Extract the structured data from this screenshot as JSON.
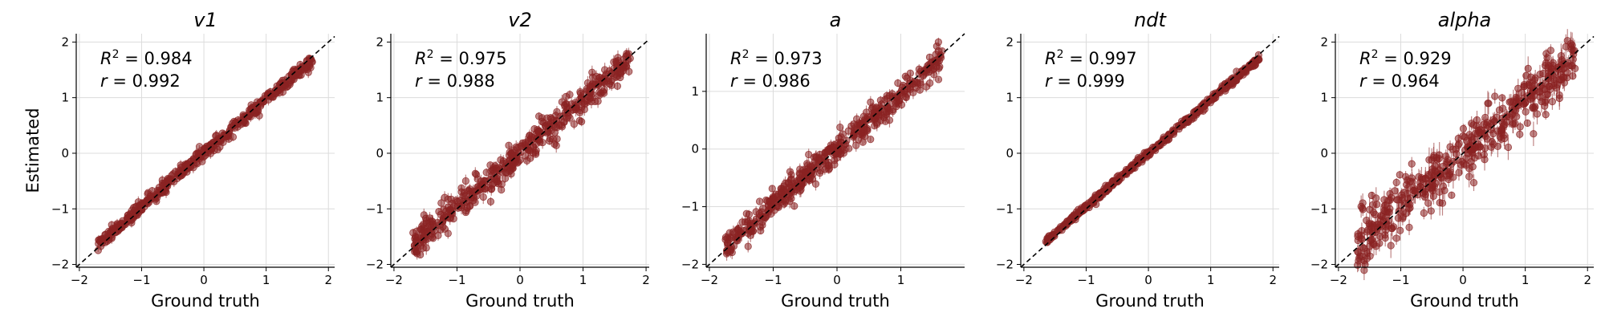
{
  "chart_data": [
    {
      "type": "scatter",
      "title": "v1",
      "xlabel": "Ground truth",
      "ylabel": "Estimated",
      "xlim": [
        -2.05,
        2.1
      ],
      "ylim": [
        -2.05,
        2.15
      ],
      "xticks": [
        -2,
        -1,
        0,
        1,
        2
      ],
      "yticks": [
        -2,
        -1,
        0,
        1,
        2
      ],
      "grid": true,
      "identity_line": true,
      "r2_value": "0.984",
      "r_value": "0.992",
      "point_color": "#8B2323",
      "x_range": [
        -1.7,
        1.75
      ],
      "spread": 0.06,
      "errorbar": 0.08,
      "seed": 11
    },
    {
      "type": "scatter",
      "title": "v2",
      "xlabel": "Ground truth",
      "ylabel": "",
      "xlim": [
        -2.05,
        2.05
      ],
      "ylim": [
        -2.05,
        2.15
      ],
      "xticks": [
        -2,
        -1,
        0,
        1,
        2
      ],
      "yticks": [
        -2,
        -1,
        0,
        1,
        2
      ],
      "grid": true,
      "identity_line": true,
      "r2_value": "0.975",
      "r_value": "0.988",
      "point_color": "#8B2323",
      "x_range": [
        -1.7,
        1.75
      ],
      "spread": 0.13,
      "errorbar": 0.1,
      "seed": 23
    },
    {
      "type": "scatter",
      "title": "a",
      "xlabel": "Ground truth",
      "ylabel": "",
      "xlim": [
        -2.05,
        2.0
      ],
      "ylim": [
        -2.05,
        2.0
      ],
      "xticks": [
        -2,
        -1,
        0,
        1
      ],
      "yticks": [
        -2,
        -1,
        0,
        1
      ],
      "grid": true,
      "identity_line": true,
      "r2_value": "0.973",
      "r_value": "0.986",
      "point_color": "#8B2323",
      "x_range": [
        -1.75,
        1.65
      ],
      "spread": 0.12,
      "errorbar": 0.1,
      "seed": 37
    },
    {
      "type": "scatter",
      "title": "ndt",
      "xlabel": "Ground truth",
      "ylabel": "",
      "xlim": [
        -2.05,
        2.1
      ],
      "ylim": [
        -2.05,
        2.15
      ],
      "xticks": [
        -2,
        -1,
        0,
        1,
        2
      ],
      "yticks": [
        -2,
        -1,
        0,
        1,
        2
      ],
      "grid": true,
      "identity_line": true,
      "r2_value": "0.997",
      "r_value": "0.999",
      "point_color": "#8B2323",
      "x_range": [
        -1.65,
        1.8
      ],
      "spread": 0.03,
      "errorbar": 0.05,
      "seed": 41
    },
    {
      "type": "scatter",
      "title": "alpha",
      "xlabel": "Ground truth",
      "ylabel": "",
      "xlim": [
        -2.05,
        2.1
      ],
      "ylim": [
        -2.05,
        2.15
      ],
      "xticks": [
        -2,
        -1,
        0,
        1,
        2
      ],
      "yticks": [
        -2,
        -1,
        0,
        1,
        2
      ],
      "grid": true,
      "identity_line": true,
      "r2_value": "0.929",
      "r_value": "0.964",
      "point_color": "#8B2323",
      "x_range": [
        -1.7,
        1.8
      ],
      "spread": 0.25,
      "errorbar": 0.18,
      "seed": 53
    }
  ]
}
